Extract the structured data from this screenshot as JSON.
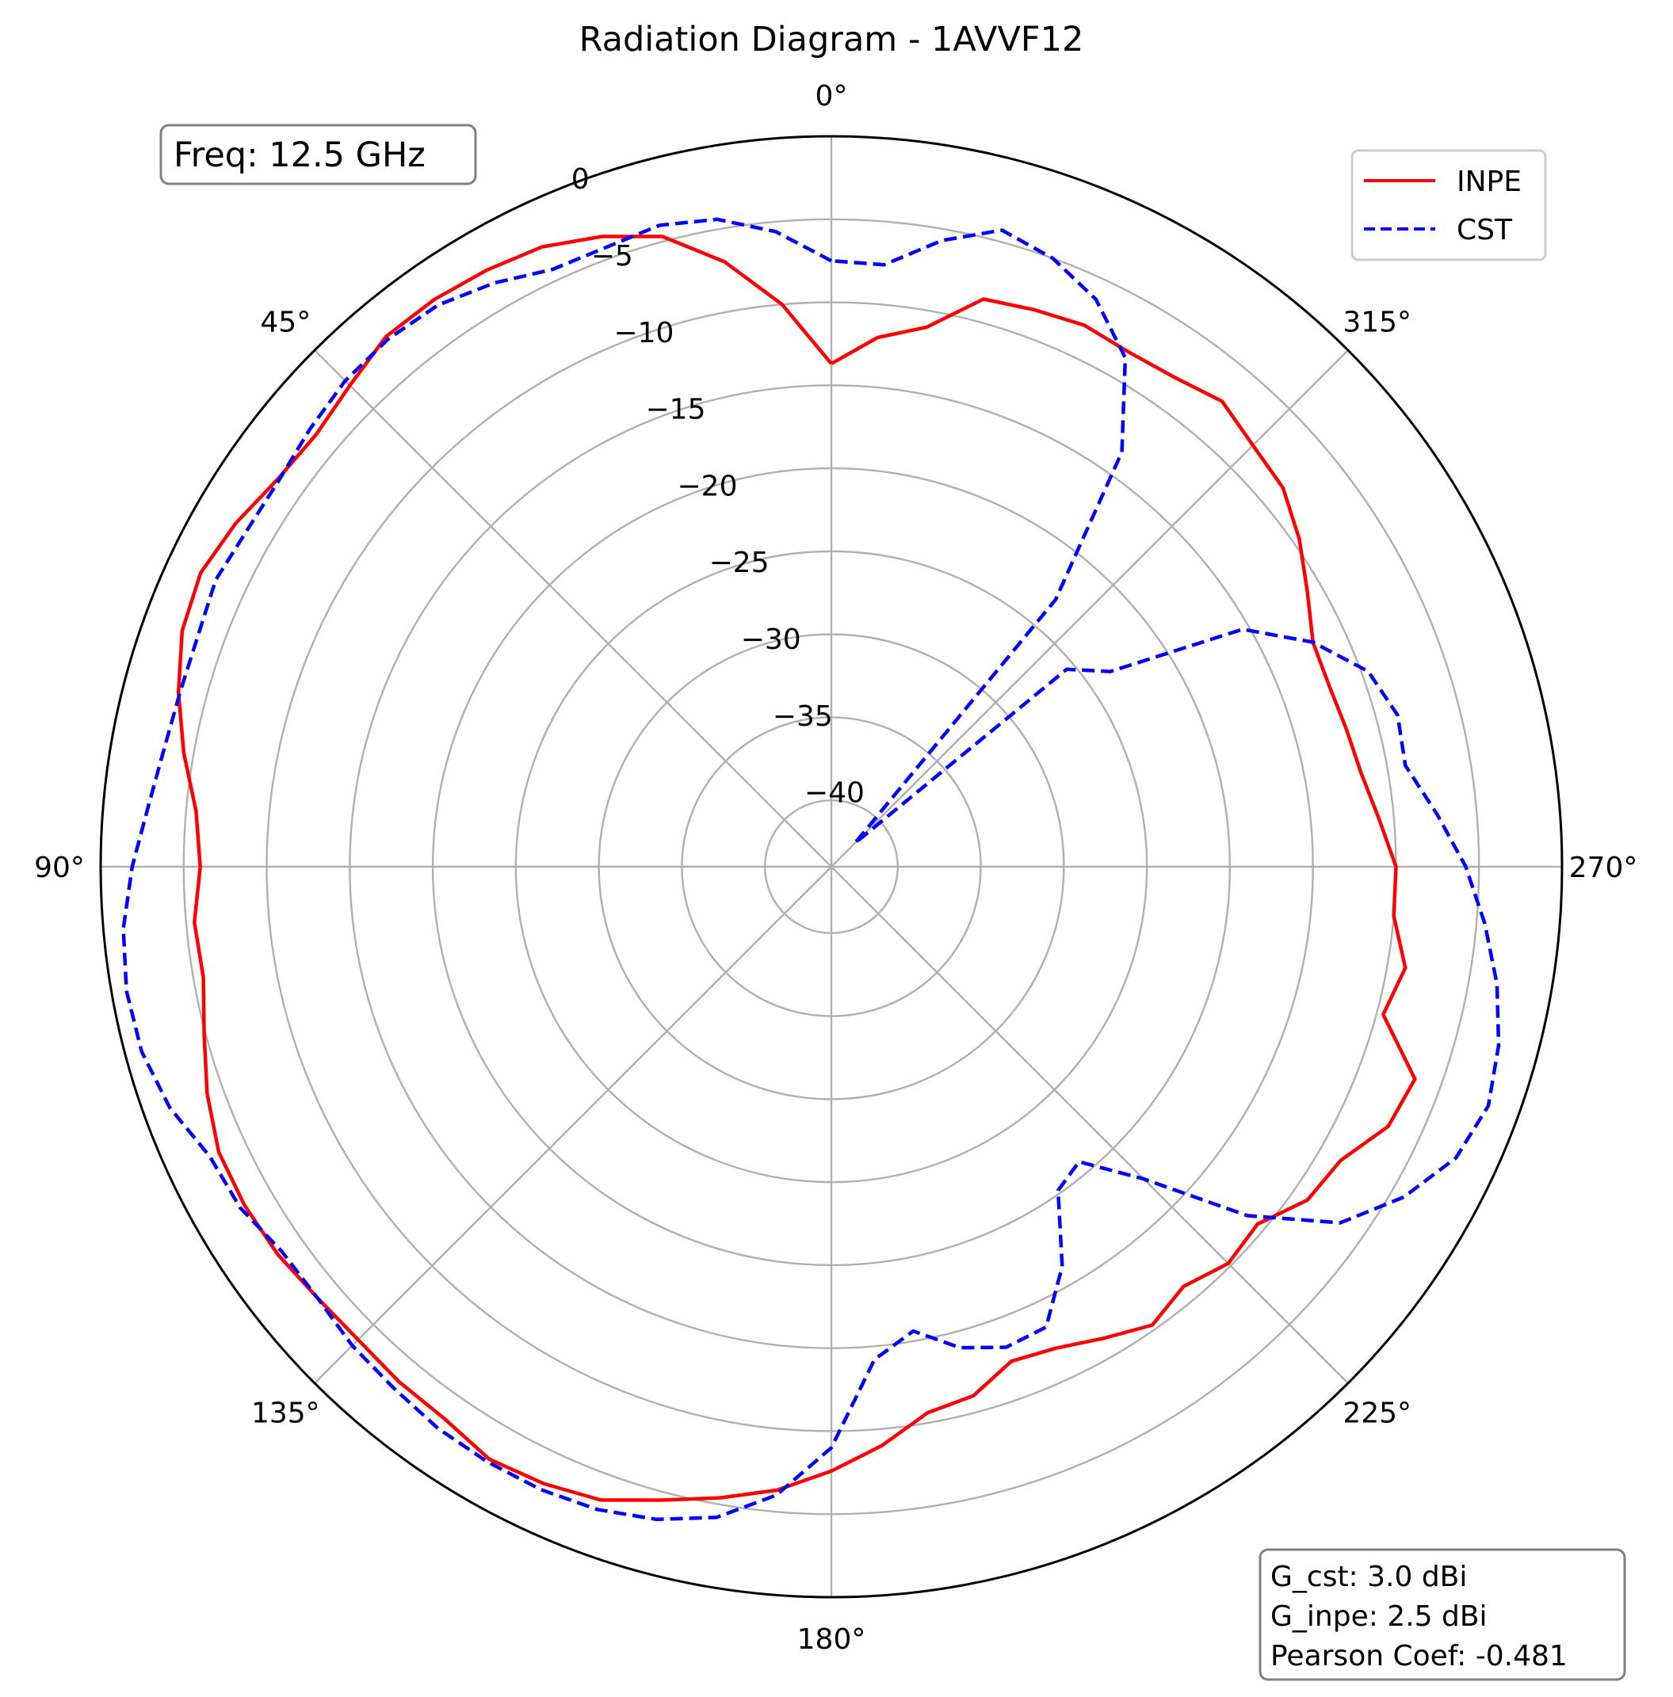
{
  "chart_data": {
    "type": "polar-line",
    "title": "Radiation Diagram - 1AVVF12",
    "theta_direction": "counterclockwise",
    "theta_zero": "top",
    "r_range": [
      -44,
      0
    ],
    "r_ticks": [
      0,
      -5,
      -10,
      -15,
      -20,
      -25,
      -30,
      -35,
      -40
    ],
    "r_tick_labels": [
      "0",
      "−5",
      "−10",
      "−15",
      "−20",
      "−25",
      "−30",
      "−35",
      "−40"
    ],
    "theta_ticks": [
      0,
      45,
      90,
      135,
      180,
      225,
      270,
      315
    ],
    "theta_tick_labels": [
      "0°",
      "45°",
      "90°",
      "135°",
      "180°",
      "225°",
      "270°",
      "315°"
    ],
    "grid": true,
    "legend": {
      "position": "top-right"
    },
    "series": [
      {
        "name": "INPE",
        "color": "#ff0000",
        "linestyle": "solid",
        "points": [
          [
            0,
            -13.7
          ],
          [
            5,
            -10.0
          ],
          [
            10,
            -7.0
          ],
          [
            15,
            -4.7
          ],
          [
            20,
            -3.6
          ],
          [
            25,
            -2.8
          ],
          [
            30,
            -2.5
          ],
          [
            35,
            -2.3
          ],
          [
            40,
            -2.3
          ],
          [
            45,
            -3.0
          ],
          [
            50,
            -3.5
          ],
          [
            55,
            -3.3
          ],
          [
            60,
            -2.6
          ],
          [
            65,
            -2.1
          ],
          [
            70,
            -2.4
          ],
          [
            75,
            -3.3
          ],
          [
            80,
            -4.4
          ],
          [
            85,
            -5.6
          ],
          [
            90,
            -6.0
          ],
          [
            95,
            -5.5
          ],
          [
            100,
            -5.6
          ],
          [
            105,
            -4.9
          ],
          [
            110,
            -4.0
          ],
          [
            115,
            -3.3
          ],
          [
            120,
            -3.2
          ],
          [
            125,
            -3.3
          ],
          [
            130,
            -3.6
          ],
          [
            135,
            -3.7
          ],
          [
            140,
            -3.5
          ],
          [
            145,
            -3.4
          ],
          [
            150,
            -2.8
          ],
          [
            155,
            -3.0
          ],
          [
            160,
            -3.4
          ],
          [
            165,
            -4.5
          ],
          [
            170,
            -5.4
          ],
          [
            175,
            -6.3
          ],
          [
            180,
            -7.6
          ],
          [
            185,
            -9.0
          ],
          [
            190,
            -10.6
          ],
          [
            195,
            -11.0
          ],
          [
            200,
            -12.3
          ],
          [
            205,
            -12.0
          ],
          [
            210,
            -11.2
          ],
          [
            215,
            -10.3
          ],
          [
            220,
            -11.0
          ],
          [
            225,
            -10.2
          ],
          [
            230,
            -10.5
          ],
          [
            235,
            -9.0
          ],
          [
            240,
            -8.6
          ],
          [
            245,
            -7.0
          ],
          [
            250,
            -6.6
          ],
          [
            255,
            -9.6
          ],
          [
            260,
            -8.9
          ],
          [
            265,
            -10.0
          ],
          [
            270,
            -10.0
          ],
          [
            275,
            -10.9
          ],
          [
            280,
            -11.6
          ],
          [
            285,
            -11.9
          ],
          [
            290,
            -12.1
          ],
          [
            295,
            -12.0
          ],
          [
            300,
            -10.9
          ],
          [
            305,
            -9.6
          ],
          [
            310,
            -8.5
          ],
          [
            315,
            -8.1
          ],
          [
            320,
            -7.4
          ],
          [
            325,
            -8.0
          ],
          [
            330,
            -8.2
          ],
          [
            335,
            -8.0
          ],
          [
            340,
            -8.3
          ],
          [
            345,
            -8.6
          ],
          [
            350,
            -11.0
          ],
          [
            355,
            -12.0
          ],
          [
            360,
            -13.7
          ]
        ]
      },
      {
        "name": "CST",
        "color": "#0000ff",
        "linestyle": "dashed",
        "points": [
          [
            0,
            -7.5
          ],
          [
            5,
            -5.6
          ],
          [
            10,
            -4.4
          ],
          [
            15,
            -4.0
          ],
          [
            20,
            -4.3
          ],
          [
            25,
            -4.3
          ],
          [
            30,
            -3.4
          ],
          [
            35,
            -2.7
          ],
          [
            40,
            -2.5
          ],
          [
            45,
            -2.6
          ],
          [
            50,
            -3.0
          ],
          [
            55,
            -3.4
          ],
          [
            60,
            -3.4
          ],
          [
            65,
            -3.1
          ],
          [
            70,
            -3.4
          ],
          [
            75,
            -3.4
          ],
          [
            80,
            -3.2
          ],
          [
            85,
            -2.7
          ],
          [
            90,
            -1.9
          ],
          [
            95,
            -1.2
          ],
          [
            100,
            -0.9
          ],
          [
            105,
            -1.0
          ],
          [
            110,
            -1.6
          ],
          [
            115,
            -2.7
          ],
          [
            120,
            -2.9
          ],
          [
            125,
            -3.6
          ],
          [
            130,
            -3.6
          ],
          [
            135,
            -3.2
          ],
          [
            140,
            -3.0
          ],
          [
            145,
            -2.7
          ],
          [
            150,
            -2.6
          ],
          [
            155,
            -2.6
          ],
          [
            160,
            -2.8
          ],
          [
            165,
            -3.3
          ],
          [
            170,
            -4.2
          ],
          [
            175,
            -6.0
          ],
          [
            180,
            -9.0
          ],
          [
            185,
            -14.2
          ],
          [
            190,
            -15.6
          ],
          [
            195,
            -14.0
          ],
          [
            200,
            -13.2
          ],
          [
            205,
            -13.4
          ],
          [
            210,
            -16.2
          ],
          [
            215,
            -20.2
          ],
          [
            220,
            -20.8
          ],
          [
            225,
            -17.4
          ],
          [
            230,
            -11.3
          ],
          [
            235,
            -6.6
          ],
          [
            240,
            -4.2
          ],
          [
            245,
            -2.5
          ],
          [
            250,
            -1.9
          ],
          [
            255,
            -2.4
          ],
          [
            260,
            -3.3
          ],
          [
            265,
            -4.5
          ],
          [
            270,
            -5.8
          ],
          [
            275,
            -7.4
          ],
          [
            280,
            -8.9
          ],
          [
            285,
            -8.7
          ],
          [
            290,
            -9.6
          ],
          [
            295,
            -12.0
          ],
          [
            300,
            -15.4
          ],
          [
            305,
            -23.5
          ],
          [
            310,
            -25.5
          ],
          [
            315,
            -42.0
          ],
          [
            320,
            -23.0
          ],
          [
            325,
            -13.5
          ],
          [
            330,
            -8.6
          ],
          [
            335,
            -6.3
          ],
          [
            340,
            -5.0
          ],
          [
            345,
            -4.3
          ],
          [
            350,
            -5.7
          ],
          [
            355,
            -7.6
          ],
          [
            360,
            -7.5
          ]
        ]
      }
    ],
    "annotations": {
      "freq": "Freq: 12.5 GHz",
      "stats": [
        "G_cst: 3.0 dBi",
        "G_inpe: 2.5 dBi",
        "Pearson Coef: -0.481"
      ]
    }
  }
}
